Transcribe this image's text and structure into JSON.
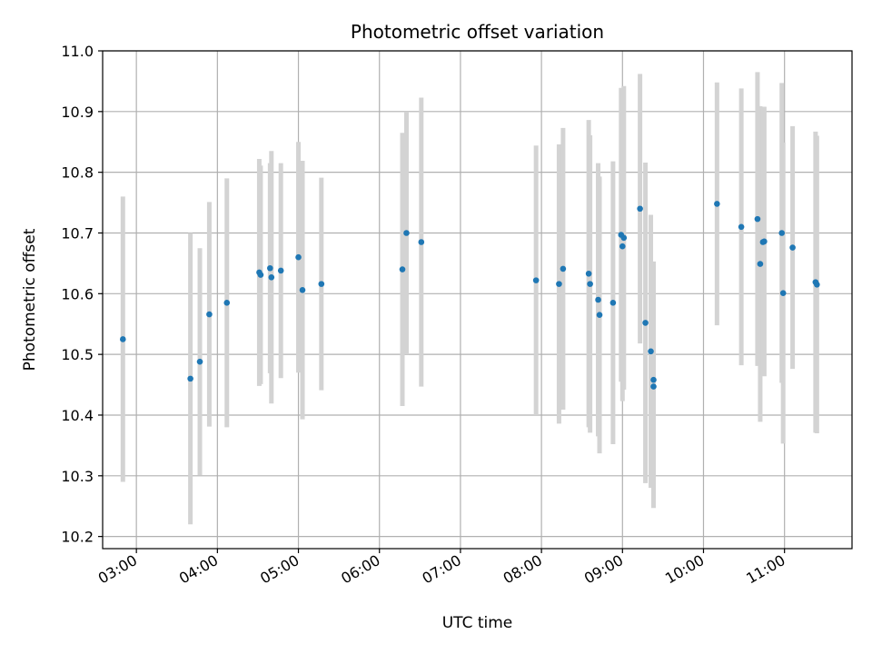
{
  "chart_data": {
    "type": "scatter",
    "title": "Photometric offset variation",
    "xlabel": "UTC time",
    "ylabel": "Photometric offset",
    "xlim": [
      "02:35",
      "11:50"
    ],
    "ylim": [
      10.18,
      11.0
    ],
    "xticks": [
      "03:00",
      "04:00",
      "05:00",
      "06:00",
      "07:00",
      "08:00",
      "09:00",
      "10:00",
      "11:00"
    ],
    "yticks": [
      "10.2",
      "10.3",
      "10.4",
      "10.5",
      "10.6",
      "10.7",
      "10.8",
      "10.9",
      "11.0"
    ],
    "grid": true,
    "colors": {
      "point": "#1f77b4",
      "errorbar": "#d3d3d3",
      "grid": "#b0b0b0"
    },
    "series": [
      {
        "points": [
          {
            "x": "02:50",
            "y": 10.525,
            "err": 0.235
          },
          {
            "x": "03:40",
            "y": 10.46,
            "err": 0.24
          },
          {
            "x": "03:47",
            "y": 10.488,
            "err": 0.187
          },
          {
            "x": "03:54",
            "y": 10.566,
            "err": 0.185
          },
          {
            "x": "04:07",
            "y": 10.585,
            "err": 0.205
          },
          {
            "x": "04:31",
            "y": 10.635,
            "err": 0.187
          },
          {
            "x": "04:32",
            "y": 10.631,
            "err": 0.18
          },
          {
            "x": "04:39",
            "y": 10.642,
            "err": 0.173
          },
          {
            "x": "04:40",
            "y": 10.627,
            "err": 0.208
          },
          {
            "x": "04:47",
            "y": 10.638,
            "err": 0.177
          },
          {
            "x": "05:00",
            "y": 10.66,
            "err": 0.19
          },
          {
            "x": "05:03",
            "y": 10.606,
            "err": 0.213
          },
          {
            "x": "05:17",
            "y": 10.616,
            "err": 0.175
          },
          {
            "x": "06:17",
            "y": 10.64,
            "err": 0.225
          },
          {
            "x": "06:20",
            "y": 10.7,
            "err": 0.2
          },
          {
            "x": "06:31",
            "y": 10.685,
            "err": 0.238
          },
          {
            "x": "07:56",
            "y": 10.622,
            "err": 0.222
          },
          {
            "x": "08:13",
            "y": 10.616,
            "err": 0.23
          },
          {
            "x": "08:16",
            "y": 10.641,
            "err": 0.232
          },
          {
            "x": "08:35",
            "y": 10.633,
            "err": 0.253
          },
          {
            "x": "08:36",
            "y": 10.616,
            "err": 0.245
          },
          {
            "x": "08:42",
            "y": 10.59,
            "err": 0.225
          },
          {
            "x": "08:43",
            "y": 10.565,
            "err": 0.228
          },
          {
            "x": "08:53",
            "y": 10.585,
            "err": 0.233
          },
          {
            "x": "08:59",
            "y": 10.697,
            "err": 0.242
          },
          {
            "x": "09:00",
            "y": 10.678,
            "err": 0.255
          },
          {
            "x": "09:01",
            "y": 10.692,
            "err": 0.25
          },
          {
            "x": "09:13",
            "y": 10.74,
            "err": 0.222
          },
          {
            "x": "09:17",
            "y": 10.552,
            "err": 0.264
          },
          {
            "x": "09:21",
            "y": 10.505,
            "err": 0.225
          },
          {
            "x": "09:23",
            "y": 10.458,
            "err": 0.195
          },
          {
            "x": "09:23",
            "y": 10.447,
            "err": 0.2
          },
          {
            "x": "10:10",
            "y": 10.748,
            "err": 0.2
          },
          {
            "x": "10:28",
            "y": 10.71,
            "err": 0.228
          },
          {
            "x": "10:40",
            "y": 10.723,
            "err": 0.242
          },
          {
            "x": "10:42",
            "y": 10.649,
            "err": 0.26
          },
          {
            "x": "10:44",
            "y": 10.685,
            "err": 0.22
          },
          {
            "x": "10:45",
            "y": 10.686,
            "err": 0.222
          },
          {
            "x": "10:58",
            "y": 10.7,
            "err": 0.247
          },
          {
            "x": "10:59",
            "y": 10.601,
            "err": 0.248
          },
          {
            "x": "11:06",
            "y": 10.676,
            "err": 0.2
          },
          {
            "x": "11:23",
            "y": 10.619,
            "err": 0.248
          },
          {
            "x": "11:24",
            "y": 10.615,
            "err": 0.245
          }
        ]
      }
    ]
  }
}
